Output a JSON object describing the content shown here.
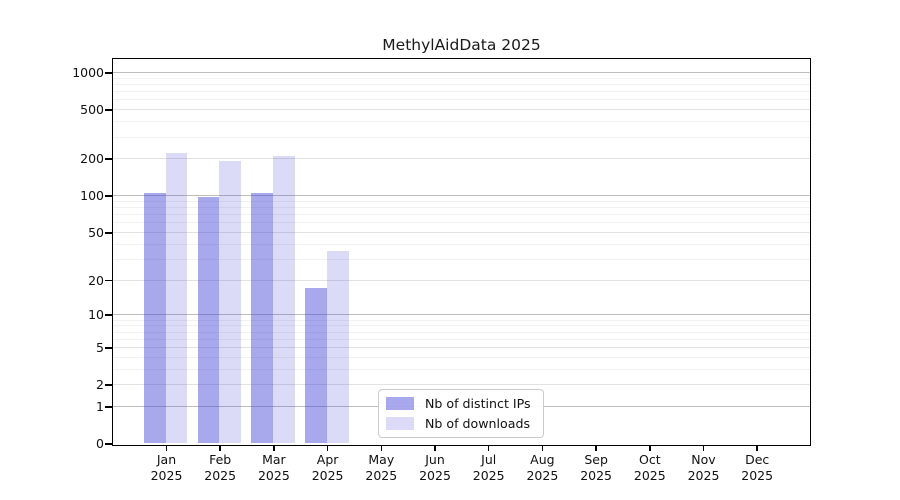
{
  "chart_data": {
    "type": "bar",
    "title": "MethylAidData 2025",
    "x_categories": [
      "Jan",
      "Feb",
      "Mar",
      "Apr",
      "May",
      "Jun",
      "Jul",
      "Aug",
      "Sep",
      "Oct",
      "Nov",
      "Dec"
    ],
    "x_year_suffix": "2025",
    "series": [
      {
        "name": "Nb of distinct IPs",
        "color": "rgba(62,62,215,0.45)",
        "values": [
          105,
          96,
          105,
          17,
          0,
          0,
          0,
          0,
          0,
          0,
          0,
          0
        ]
      },
      {
        "name": "Nb of downloads",
        "color": "rgba(62,62,215,0.19)",
        "values": [
          220,
          191,
          210,
          35,
          0,
          0,
          0,
          0,
          0,
          0,
          0,
          0
        ]
      }
    ],
    "y_axis": {
      "scale": "log1p",
      "max": 1000,
      "labeled_ticks": [
        0,
        1,
        2,
        5,
        10,
        20,
        50,
        100,
        200,
        500,
        1000
      ],
      "decade_ticks": [
        1,
        10,
        100,
        1000
      ],
      "minor_ticks": [
        3,
        4,
        6,
        7,
        8,
        9,
        30,
        40,
        60,
        70,
        80,
        90,
        300,
        400,
        600,
        700,
        800,
        900
      ]
    },
    "grid": true,
    "legend_position": "lower-center-inside"
  }
}
